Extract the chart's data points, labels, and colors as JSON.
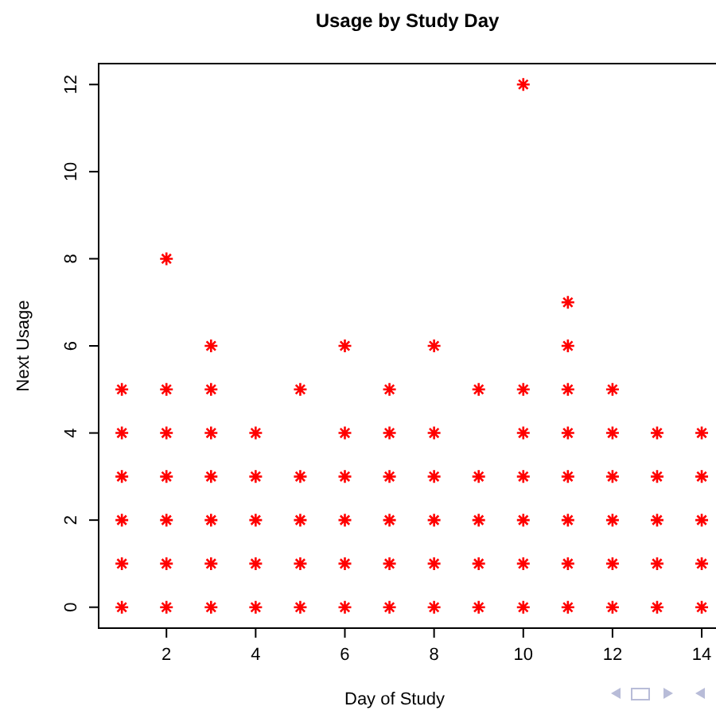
{
  "chart_data": {
    "type": "scatter",
    "title": "Usage by Study Day",
    "xlabel": "Day of Study",
    "ylabel": "Next Usage",
    "marker": "cross",
    "grid": false,
    "xlim": [
      0.48,
      14.52
    ],
    "ylim": [
      -0.48,
      12.48
    ],
    "xticks": [
      2,
      4,
      6,
      8,
      10,
      12,
      14
    ],
    "yticks": [
      0,
      2,
      4,
      6,
      8,
      10,
      12
    ],
    "series": [
      {
        "color": "#ff0000",
        "x": [
          1,
          1,
          1,
          1,
          1,
          1,
          2,
          2,
          2,
          2,
          2,
          2,
          2,
          3,
          3,
          3,
          3,
          3,
          3,
          3,
          4,
          4,
          4,
          4,
          4,
          5,
          5,
          5,
          5,
          5,
          6,
          6,
          6,
          6,
          6,
          6,
          7,
          7,
          7,
          7,
          7,
          7,
          8,
          8,
          8,
          8,
          8,
          8,
          9,
          9,
          9,
          9,
          9,
          10,
          10,
          10,
          10,
          10,
          10,
          10,
          11,
          11,
          11,
          11,
          11,
          11,
          11,
          11,
          12,
          12,
          12,
          12,
          12,
          12,
          13,
          13,
          13,
          13,
          13,
          14,
          14,
          14,
          14,
          14
        ],
        "values": [
          0,
          1,
          2,
          3,
          4,
          5,
          0,
          1,
          2,
          3,
          4,
          5,
          8,
          0,
          1,
          2,
          3,
          4,
          5,
          6,
          0,
          1,
          2,
          3,
          4,
          0,
          1,
          2,
          3,
          5,
          0,
          1,
          2,
          3,
          4,
          6,
          0,
          1,
          2,
          3,
          4,
          5,
          0,
          1,
          2,
          3,
          4,
          6,
          0,
          1,
          2,
          3,
          5,
          0,
          1,
          2,
          3,
          4,
          5,
          12,
          0,
          1,
          2,
          3,
          4,
          5,
          6,
          7,
          0,
          1,
          2,
          3,
          4,
          5,
          0,
          1,
          2,
          3,
          4,
          0,
          1,
          2,
          3,
          4
        ]
      }
    ]
  }
}
